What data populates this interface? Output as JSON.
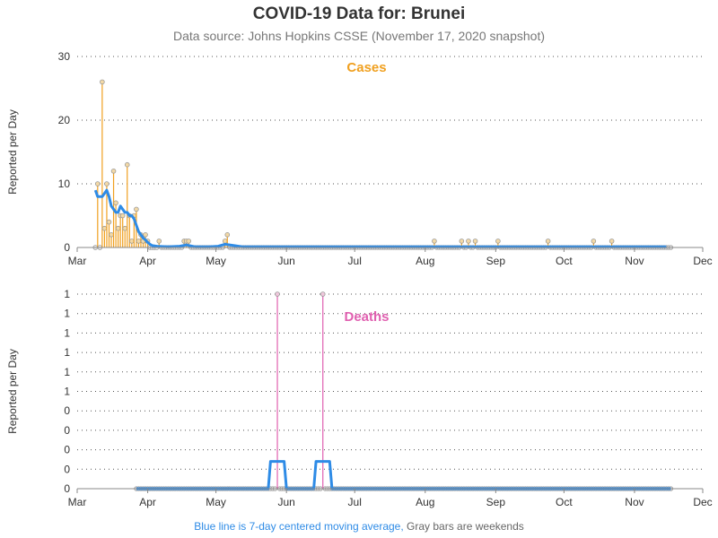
{
  "header": {
    "title": "COVID-19 Data for: Brunei",
    "subtitle": "Data source: Johns Hopkins CSSE (November 17, 2020 snapshot)"
  },
  "footer": {
    "moving_average_note": "Blue line is 7-day centered moving average,",
    "weekend_note": "Gray bars are weekends"
  },
  "colors": {
    "cases": "#f0a020",
    "deaths": "#e060b0",
    "moving_average": "#2e8be6",
    "marker": "#999999",
    "grid": "#555555"
  },
  "chart_data": [
    {
      "type": "bar",
      "title": "Cases",
      "ylabel": "Reported per Day",
      "x_axis_type": "date",
      "xlim": [
        "2020-03-01",
        "2020-12-01"
      ],
      "ylim": [
        0,
        30
      ],
      "y_ticks": [
        "0",
        "10",
        "20",
        "30"
      ],
      "x_ticks": [
        {
          "date": "2020-03-01",
          "label": "Mar"
        },
        {
          "date": "2020-04-01",
          "label": "Apr"
        },
        {
          "date": "2020-05-01",
          "label": "May"
        },
        {
          "date": "2020-06-01",
          "label": "Jun"
        },
        {
          "date": "2020-07-01",
          "label": "Jul"
        },
        {
          "date": "2020-08-01",
          "label": "Aug"
        },
        {
          "date": "2020-09-01",
          "label": "Sep"
        },
        {
          "date": "2020-10-01",
          "label": "Oct"
        },
        {
          "date": "2020-11-01",
          "label": "Nov"
        },
        {
          "date": "2020-12-01",
          "label": "Dec"
        }
      ],
      "grid": "horizontal-dotted",
      "data_start": "2020-03-09",
      "data_end": "2020-11-17",
      "values": [
        {
          "date": "2020-03-09",
          "value": 0
        },
        {
          "date": "2020-03-10",
          "value": 10
        },
        {
          "date": "2020-03-11",
          "value": 0
        },
        {
          "date": "2020-03-12",
          "value": 26
        },
        {
          "date": "2020-03-13",
          "value": 3
        },
        {
          "date": "2020-03-14",
          "value": 10
        },
        {
          "date": "2020-03-15",
          "value": 4
        },
        {
          "date": "2020-03-16",
          "value": 2
        },
        {
          "date": "2020-03-17",
          "value": 12
        },
        {
          "date": "2020-03-18",
          "value": 7
        },
        {
          "date": "2020-03-19",
          "value": 3
        },
        {
          "date": "2020-03-20",
          "value": 5
        },
        {
          "date": "2020-03-21",
          "value": 5
        },
        {
          "date": "2020-03-22",
          "value": 3
        },
        {
          "date": "2020-03-23",
          "value": 13
        },
        {
          "date": "2020-03-24",
          "value": 5
        },
        {
          "date": "2020-03-25",
          "value": 1
        },
        {
          "date": "2020-03-26",
          "value": 5
        },
        {
          "date": "2020-03-27",
          "value": 6
        },
        {
          "date": "2020-03-28",
          "value": 1
        },
        {
          "date": "2020-03-29",
          "value": 2
        },
        {
          "date": "2020-03-30",
          "value": 1
        },
        {
          "date": "2020-03-31",
          "value": 2
        },
        {
          "date": "2020-04-01",
          "value": 1
        },
        {
          "date": "2020-04-02",
          "value": 0
        },
        {
          "date": "2020-04-03",
          "value": 0
        },
        {
          "date": "2020-04-04",
          "value": 0
        },
        {
          "date": "2020-04-05",
          "value": 0
        },
        {
          "date": "2020-04-06",
          "value": 1
        },
        {
          "date": "2020-04-17",
          "value": 1
        },
        {
          "date": "2020-04-18",
          "value": 1
        },
        {
          "date": "2020-04-19",
          "value": 1
        },
        {
          "date": "2020-05-05",
          "value": 1
        },
        {
          "date": "2020-05-06",
          "value": 2
        },
        {
          "date": "2020-08-05",
          "value": 1
        },
        {
          "date": "2020-08-17",
          "value": 1
        },
        {
          "date": "2020-08-20",
          "value": 1
        },
        {
          "date": "2020-08-23",
          "value": 1
        },
        {
          "date": "2020-09-02",
          "value": 1
        },
        {
          "date": "2020-09-24",
          "value": 1
        },
        {
          "date": "2020-10-14",
          "value": 1
        },
        {
          "date": "2020-10-22",
          "value": 1
        }
      ],
      "moving_average": [
        {
          "date": "2020-03-09",
          "value": 9
        },
        {
          "date": "2020-03-10",
          "value": 8
        },
        {
          "date": "2020-03-11",
          "value": 8
        },
        {
          "date": "2020-03-12",
          "value": 8
        },
        {
          "date": "2020-03-13",
          "value": 8.5
        },
        {
          "date": "2020-03-14",
          "value": 9
        },
        {
          "date": "2020-03-15",
          "value": 8
        },
        {
          "date": "2020-03-16",
          "value": 6.5
        },
        {
          "date": "2020-03-17",
          "value": 6
        },
        {
          "date": "2020-03-18",
          "value": 5.5
        },
        {
          "date": "2020-03-19",
          "value": 5.5
        },
        {
          "date": "2020-03-20",
          "value": 6.5
        },
        {
          "date": "2020-03-21",
          "value": 6
        },
        {
          "date": "2020-03-22",
          "value": 5.5
        },
        {
          "date": "2020-03-23",
          "value": 5.5
        },
        {
          "date": "2020-03-24",
          "value": 5
        },
        {
          "date": "2020-03-25",
          "value": 5
        },
        {
          "date": "2020-03-26",
          "value": 4.5
        },
        {
          "date": "2020-03-27",
          "value": 3.5
        },
        {
          "date": "2020-03-28",
          "value": 2.5
        },
        {
          "date": "2020-03-29",
          "value": 2
        },
        {
          "date": "2020-03-30",
          "value": 1.5
        },
        {
          "date": "2020-03-31",
          "value": 1.2
        },
        {
          "date": "2020-04-01",
          "value": 0.8
        },
        {
          "date": "2020-04-02",
          "value": 0.5
        },
        {
          "date": "2020-04-03",
          "value": 0.3
        },
        {
          "date": "2020-04-05",
          "value": 0.2
        },
        {
          "date": "2020-04-10",
          "value": 0.1
        },
        {
          "date": "2020-04-15",
          "value": 0.2
        },
        {
          "date": "2020-04-18",
          "value": 0.4
        },
        {
          "date": "2020-04-22",
          "value": 0.1
        },
        {
          "date": "2020-04-28",
          "value": 0.1
        },
        {
          "date": "2020-05-02",
          "value": 0.2
        },
        {
          "date": "2020-05-05",
          "value": 0.5
        },
        {
          "date": "2020-05-09",
          "value": 0.3
        },
        {
          "date": "2020-05-13",
          "value": 0.1
        },
        {
          "date": "2020-06-01",
          "value": 0.1
        },
        {
          "date": "2020-08-01",
          "value": 0.1
        },
        {
          "date": "2020-09-01",
          "value": 0.1
        },
        {
          "date": "2020-10-01",
          "value": 0.1
        },
        {
          "date": "2020-11-15",
          "value": 0.1
        }
      ]
    },
    {
      "type": "bar",
      "title": "Deaths",
      "ylabel": "Reported per Day",
      "x_axis_type": "date",
      "xlim": [
        "2020-03-01",
        "2020-12-01"
      ],
      "ylim": [
        0,
        1
      ],
      "y_ticks": [
        "0",
        "0",
        "0",
        "0",
        "0",
        "1",
        "1",
        "1",
        "1",
        "1",
        "1"
      ],
      "x_ticks": [
        {
          "date": "2020-03-01",
          "label": "Mar"
        },
        {
          "date": "2020-04-01",
          "label": "Apr"
        },
        {
          "date": "2020-05-01",
          "label": "May"
        },
        {
          "date": "2020-06-01",
          "label": "Jun"
        },
        {
          "date": "2020-07-01",
          "label": "Jul"
        },
        {
          "date": "2020-08-01",
          "label": "Aug"
        },
        {
          "date": "2020-09-01",
          "label": "Sep"
        },
        {
          "date": "2020-10-01",
          "label": "Oct"
        },
        {
          "date": "2020-11-01",
          "label": "Nov"
        },
        {
          "date": "2020-12-01",
          "label": "Dec"
        }
      ],
      "grid": "horizontal-dotted",
      "data_start": "2020-03-27",
      "data_end": "2020-11-17",
      "values": [
        {
          "date": "2020-05-28",
          "value": 1
        },
        {
          "date": "2020-06-17",
          "value": 1
        }
      ],
      "moving_average": [
        {
          "date": "2020-03-27",
          "value": 0
        },
        {
          "date": "2020-05-24",
          "value": 0
        },
        {
          "date": "2020-05-25",
          "value": 0.14
        },
        {
          "date": "2020-05-31",
          "value": 0.14
        },
        {
          "date": "2020-06-01",
          "value": 0
        },
        {
          "date": "2020-06-13",
          "value": 0
        },
        {
          "date": "2020-06-14",
          "value": 0.14
        },
        {
          "date": "2020-06-20",
          "value": 0.14
        },
        {
          "date": "2020-06-21",
          "value": 0
        },
        {
          "date": "2020-11-17",
          "value": 0
        }
      ]
    }
  ]
}
